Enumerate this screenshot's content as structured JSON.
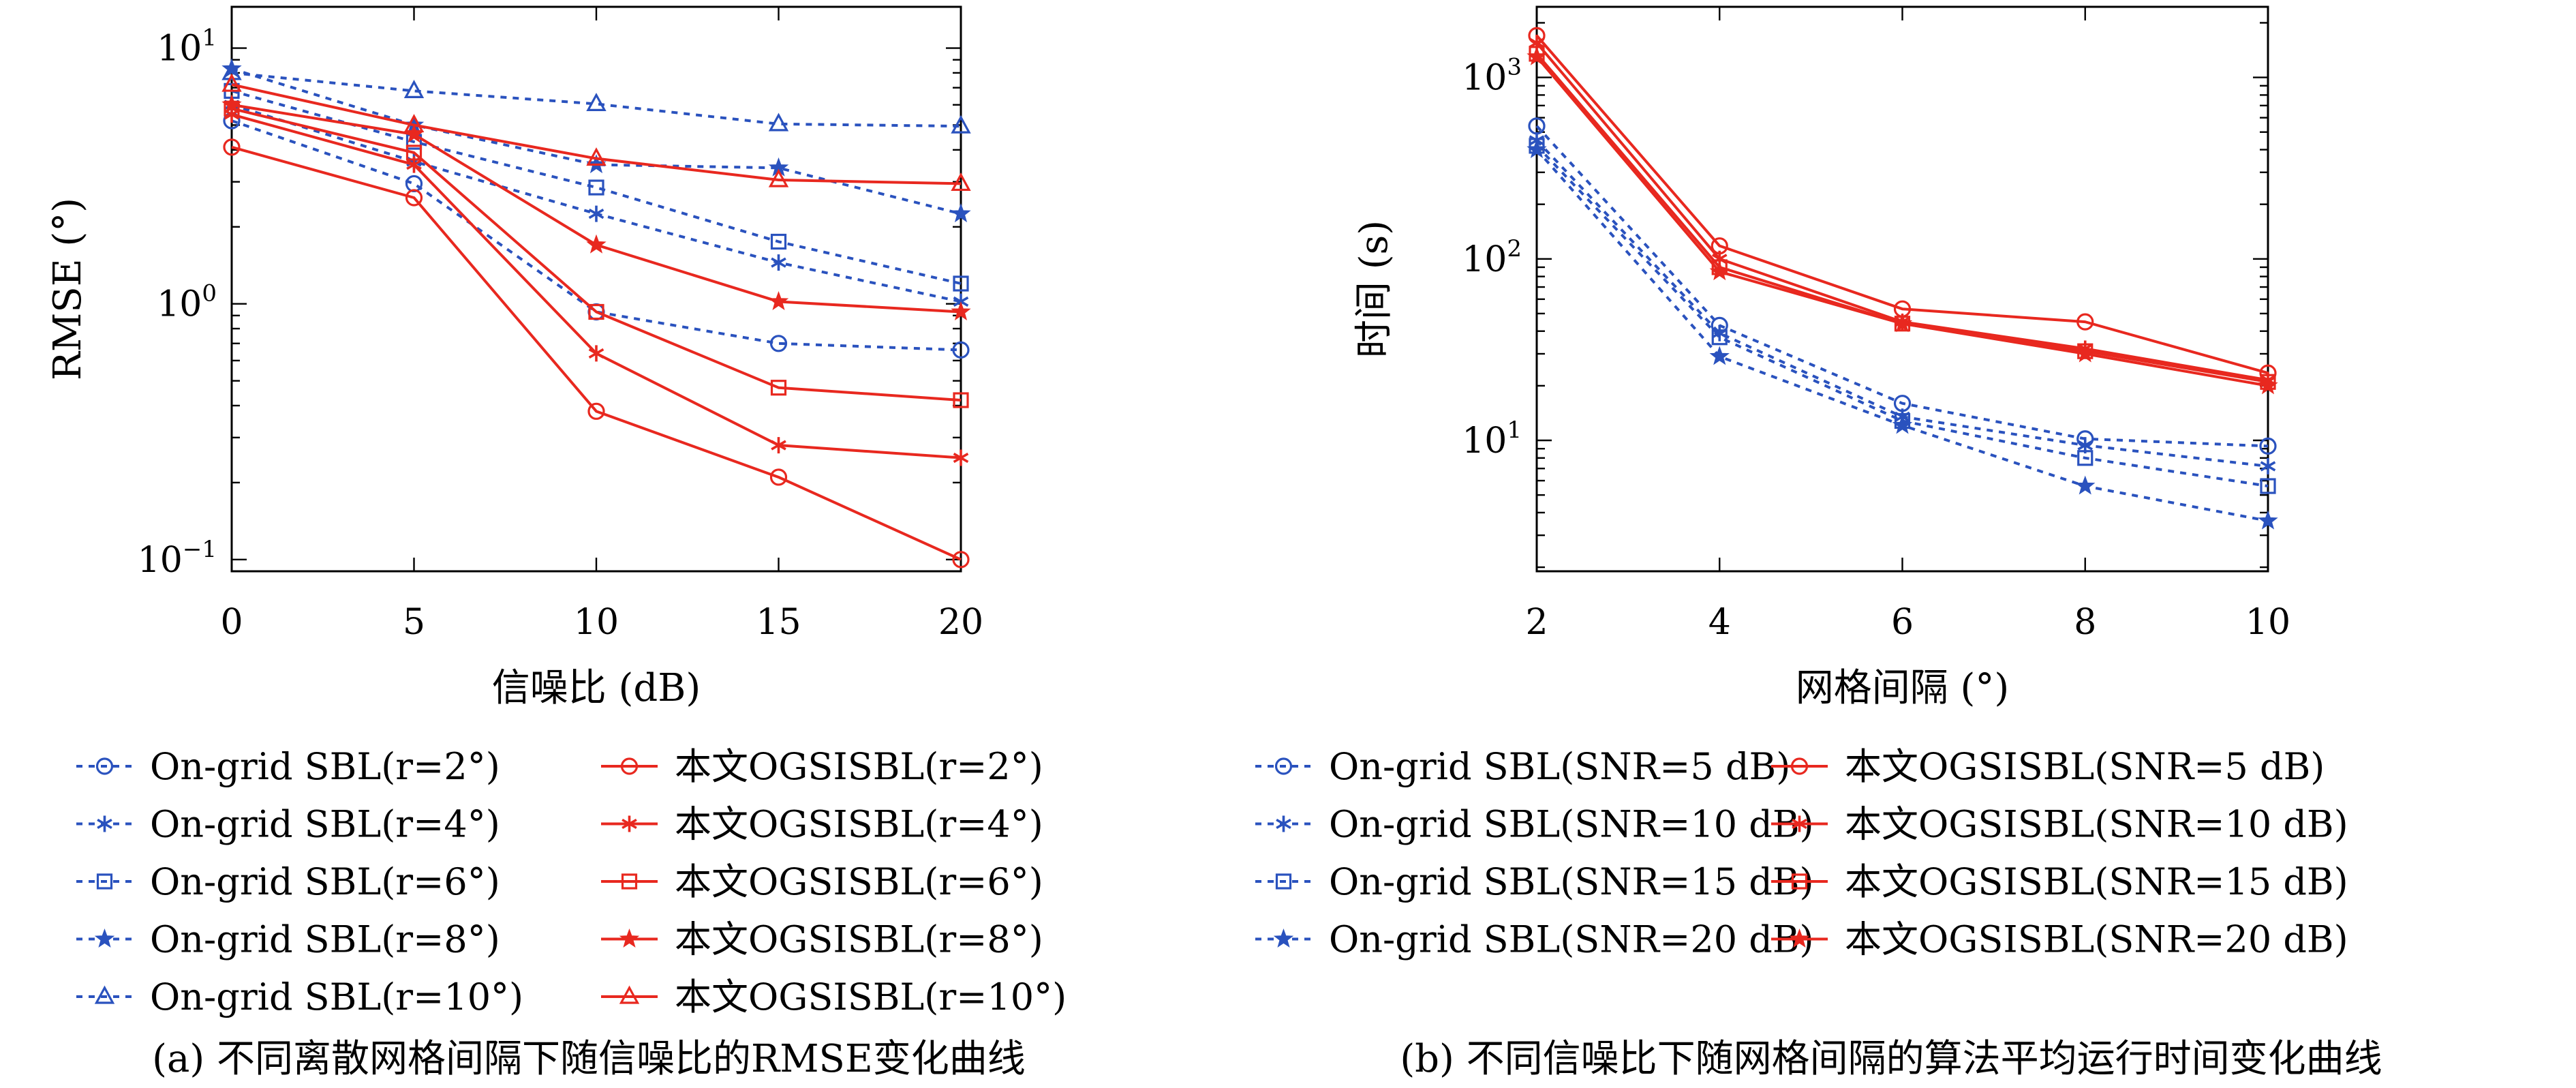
{
  "colors": {
    "ongrid": "#2a52be",
    "proposed": "#e8281f"
  },
  "chart_data": [
    {
      "type": "line",
      "caption": "(a) 不同离散网格间隔下随信噪比的RMSE变化曲线",
      "xlabel": "信噪比 (dB)",
      "ylabel": "RMSE (°)",
      "yscale": "log",
      "xlim": [
        0,
        20
      ],
      "ylim": [
        0.09,
        14.5
      ],
      "x": [
        0,
        5,
        10,
        15,
        20
      ],
      "xtick_labels": [
        "0",
        "5",
        "10",
        "15",
        "20"
      ],
      "ytick_labels": [
        {
          "base": "10",
          "exp": "1"
        },
        {
          "base": "10",
          "exp": "0"
        },
        {
          "base": "10",
          "exp": "−1"
        }
      ],
      "legend_position": "below",
      "series": [
        {
          "name": "On-grid SBL(r=2°)",
          "method": "ongrid",
          "marker": "circle",
          "values": [
            5.2,
            2.95,
            0.93,
            0.7,
            0.66
          ]
        },
        {
          "name": "On-grid SBL(r=4°)",
          "method": "ongrid",
          "marker": "asterisk",
          "values": [
            6.0,
            3.6,
            2.25,
            1.45,
            1.02
          ]
        },
        {
          "name": "On-grid SBL(r=6°)",
          "method": "ongrid",
          "marker": "square",
          "values": [
            6.8,
            4.3,
            2.85,
            1.75,
            1.2
          ]
        },
        {
          "name": "On-grid SBL(r=8°)",
          "method": "ongrid",
          "marker": "star",
          "values": [
            8.3,
            5.0,
            3.5,
            3.4,
            2.25
          ]
        },
        {
          "name": "On-grid SBL(r=10°)",
          "method": "ongrid",
          "marker": "triangle",
          "values": [
            8.0,
            6.8,
            6.05,
            5.05,
            4.95
          ]
        },
        {
          "name": "本文OGSISBL(r=2°)",
          "method": "proposed",
          "marker": "circle",
          "values": [
            4.1,
            2.6,
            0.38,
            0.21,
            0.1
          ]
        },
        {
          "name": "本文OGSISBL(r=4°)",
          "method": "proposed",
          "marker": "asterisk",
          "values": [
            5.5,
            3.5,
            0.64,
            0.28,
            0.25
          ]
        },
        {
          "name": "本文OGSISBL(r=6°)",
          "method": "proposed",
          "marker": "square",
          "values": [
            5.8,
            3.9,
            0.93,
            0.47,
            0.42
          ]
        },
        {
          "name": "本文OGSISBL(r=8°)",
          "method": "proposed",
          "marker": "star",
          "values": [
            6.0,
            4.6,
            1.7,
            1.02,
            0.93
          ]
        },
        {
          "name": "本文OGSISBL(r=10°)",
          "method": "proposed",
          "marker": "triangle",
          "values": [
            7.2,
            5.0,
            3.7,
            3.05,
            2.95
          ]
        }
      ]
    },
    {
      "type": "line",
      "caption": "(b) 不同信噪比下随网格间隔的算法平均运行时间变化曲线",
      "xlabel": "网格间隔 (°)",
      "ylabel": "时间 (s)",
      "yscale": "log",
      "xlim": [
        2,
        10
      ],
      "ylim": [
        1.9,
        2450
      ],
      "x": [
        2,
        4,
        6,
        8,
        10
      ],
      "xtick_labels": [
        "2",
        "4",
        "6",
        "8",
        "10"
      ],
      "ytick_labels": [
        {
          "base": "10",
          "exp": "3"
        },
        {
          "base": "10",
          "exp": "2"
        },
        {
          "base": "10",
          "exp": "1"
        }
      ],
      "legend_position": "below",
      "series": [
        {
          "name": "On-grid SBL(SNR=5 dB)",
          "method": "ongrid",
          "marker": "circle",
          "values": [
            540,
            43,
            16,
            10.2,
            9.3
          ]
        },
        {
          "name": "On-grid SBL(SNR=10 dB)",
          "method": "ongrid",
          "marker": "asterisk",
          "values": [
            450,
            39,
            13.5,
            9.4,
            7.2
          ]
        },
        {
          "name": "On-grid SBL(SNR=15 dB)",
          "method": "ongrid",
          "marker": "square",
          "values": [
            420,
            37,
            12.8,
            8.0,
            5.6
          ]
        },
        {
          "name": "On-grid SBL(SNR=20 dB)",
          "method": "ongrid",
          "marker": "star",
          "values": [
            400,
            29,
            12.1,
            5.6,
            3.6
          ]
        },
        {
          "name": "本文OGSISBL(SNR=5 dB)",
          "method": "proposed",
          "marker": "circle",
          "values": [
            1700,
            118,
            53,
            45,
            23.5
          ]
        },
        {
          "name": "本文OGSISBL(SNR=10 dB)",
          "method": "proposed",
          "marker": "asterisk",
          "values": [
            1550,
            100,
            45,
            32,
            21.5
          ]
        },
        {
          "name": "本文OGSISBL(SNR=15 dB)",
          "method": "proposed",
          "marker": "square",
          "values": [
            1350,
            90,
            44,
            31,
            21
          ]
        },
        {
          "name": "本文OGSISBL(SNR=20 dB)",
          "method": "proposed",
          "marker": "star",
          "values": [
            1300,
            85,
            44,
            30,
            20
          ]
        }
      ]
    }
  ]
}
